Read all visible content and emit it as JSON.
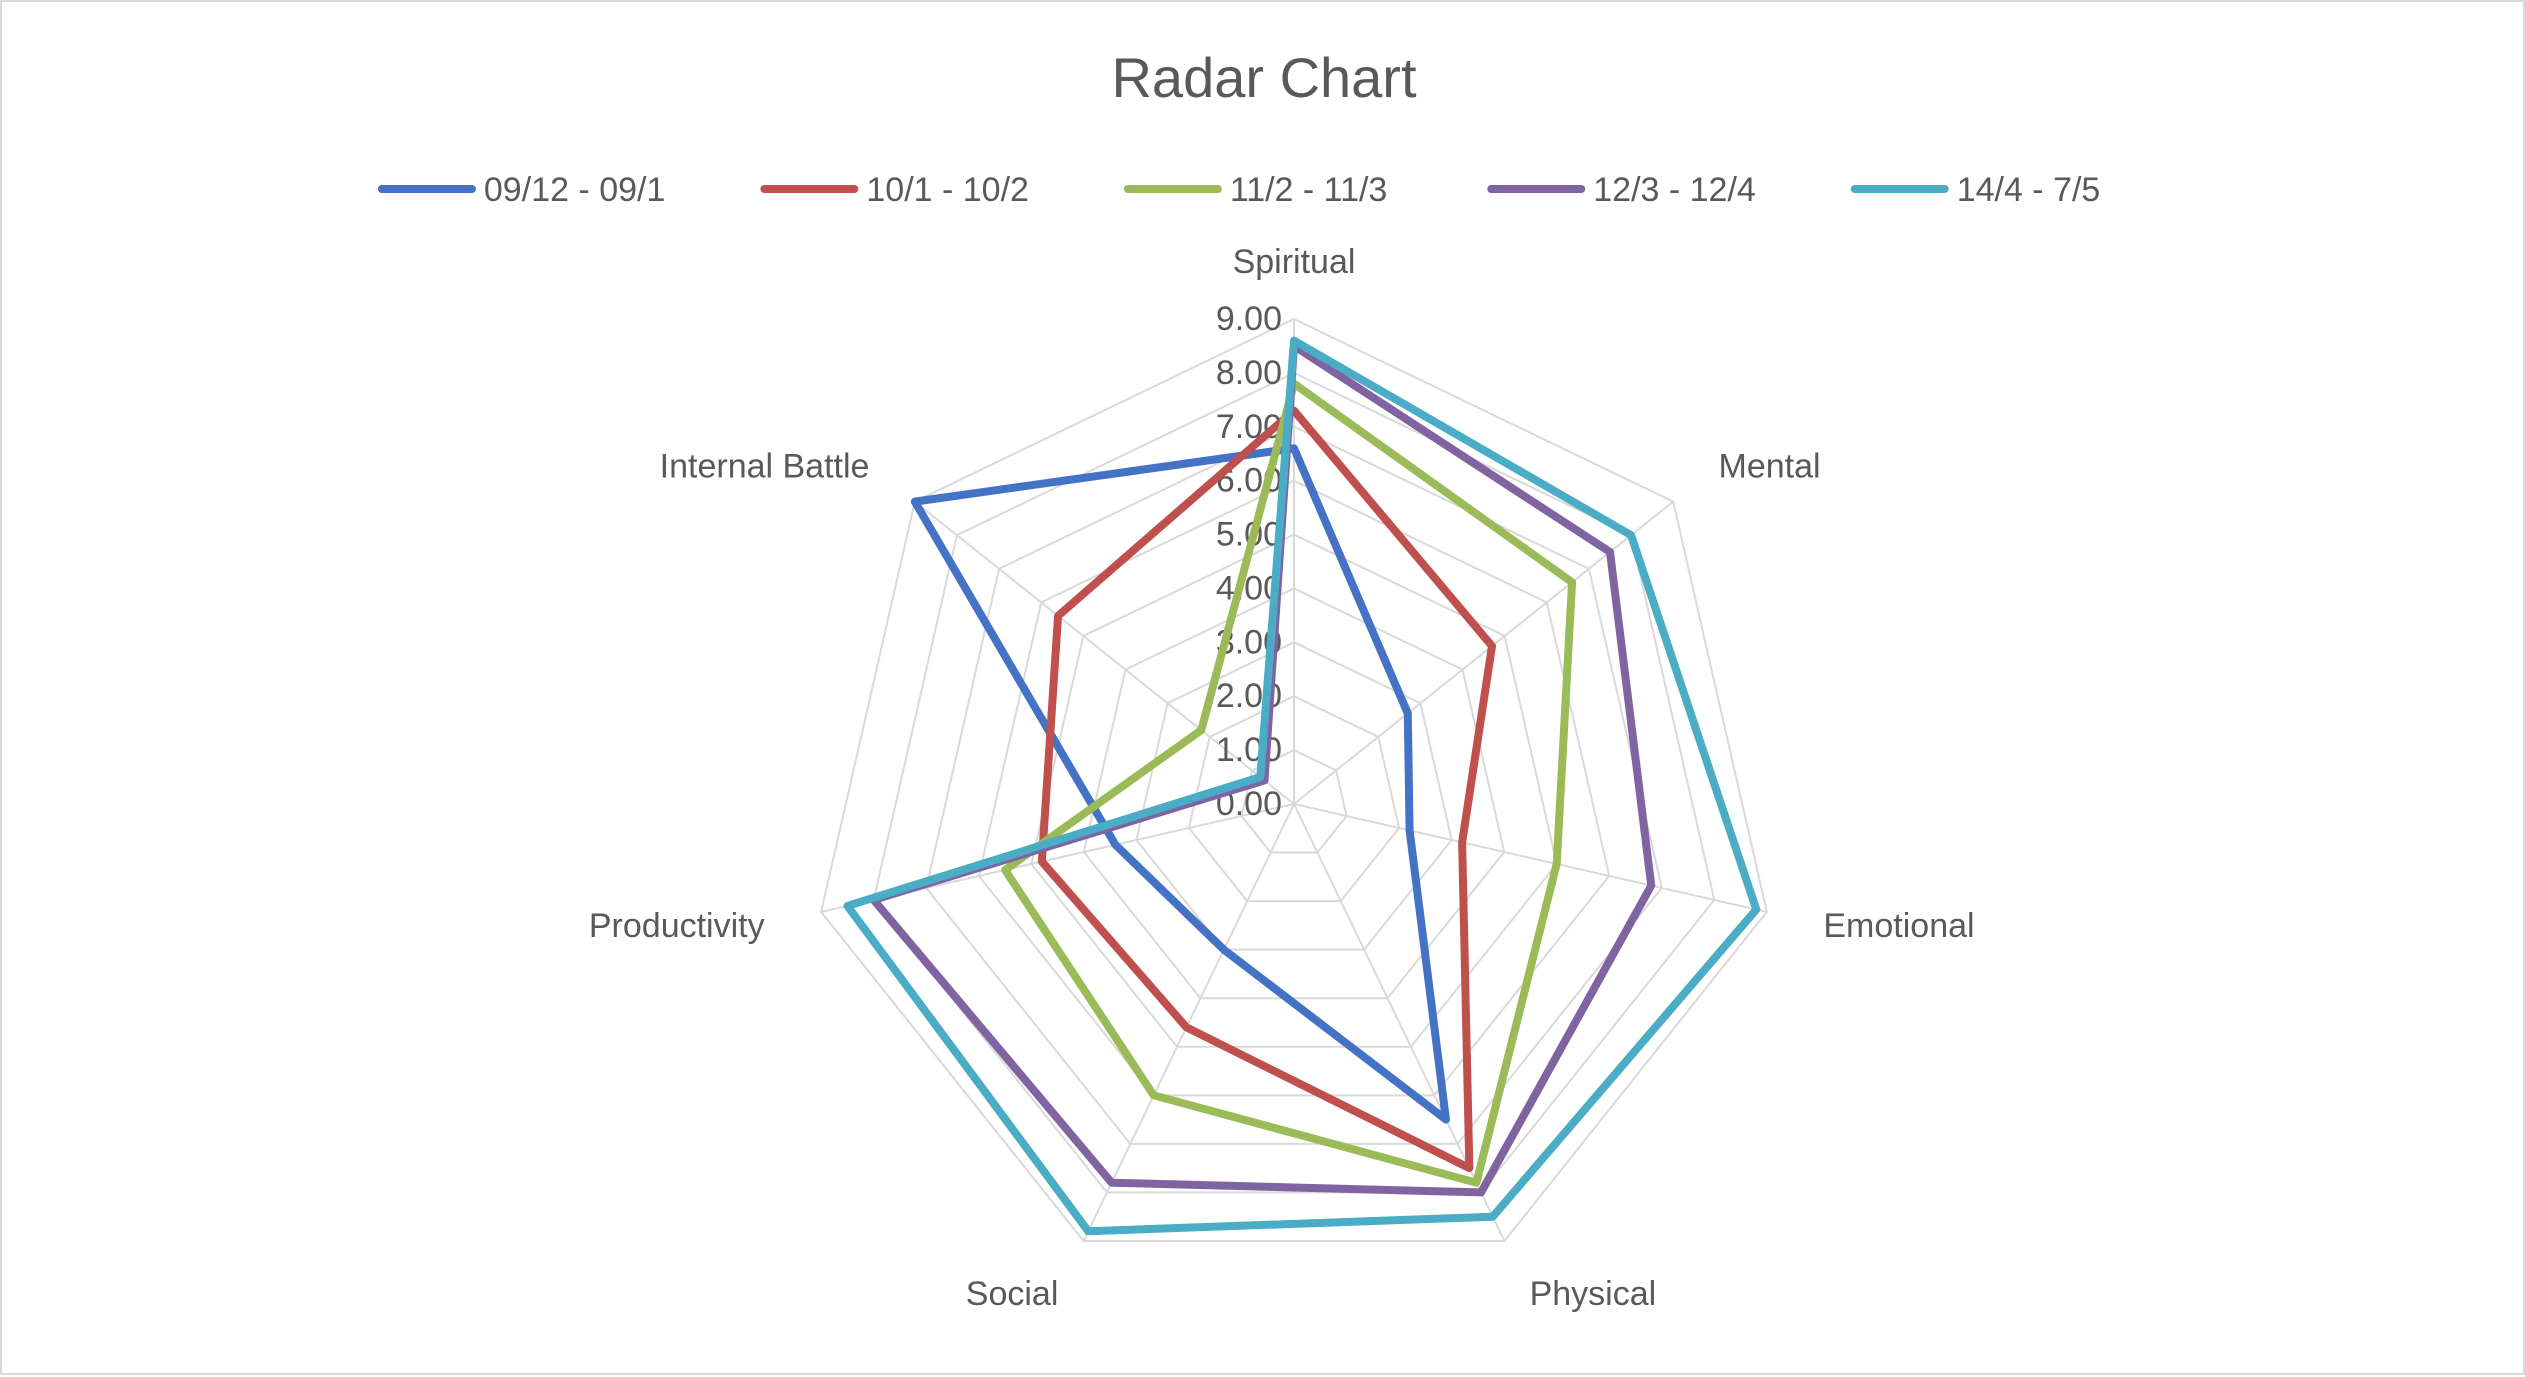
{
  "chart_data": {
    "type": "radar",
    "title": "Radar Chart",
    "categories": [
      "Spiritual",
      "Mental",
      "Emotional",
      "Physical",
      "Social",
      "Productivity",
      "Internal Battle"
    ],
    "rlim": [
      0,
      9
    ],
    "rticks": [
      "0.00",
      "1.00",
      "2.00",
      "3.00",
      "4.00",
      "5.00",
      "6.00",
      "7.00",
      "8.00",
      "9.00"
    ],
    "grid": true,
    "legend_position": "top",
    "series": [
      {
        "name": "09/12 - 09/1",
        "color": "#4472C4",
        "values": [
          6.6,
          2.7,
          2.2,
          6.5,
          3.0,
          3.4,
          9.0
        ]
      },
      {
        "name": "10/1 - 10/2",
        "color": "#C0504D",
        "values": [
          7.3,
          4.7,
          3.2,
          7.5,
          4.6,
          4.8,
          5.6
        ]
      },
      {
        "name": "11/2 - 11/3",
        "color": "#9BBB59",
        "values": [
          7.8,
          6.6,
          5.0,
          7.8,
          6.0,
          5.5,
          2.2
        ]
      },
      {
        "name": "12/3 - 12/4",
        "color": "#8064A2",
        "values": [
          8.5,
          7.5,
          6.8,
          8.0,
          7.8,
          8.0,
          0.7
        ]
      },
      {
        "name": "14/4 - 7/5",
        "color": "#4BACC6",
        "values": [
          8.6,
          8.0,
          8.8,
          8.5,
          8.8,
          8.5,
          0.8
        ]
      }
    ]
  }
}
